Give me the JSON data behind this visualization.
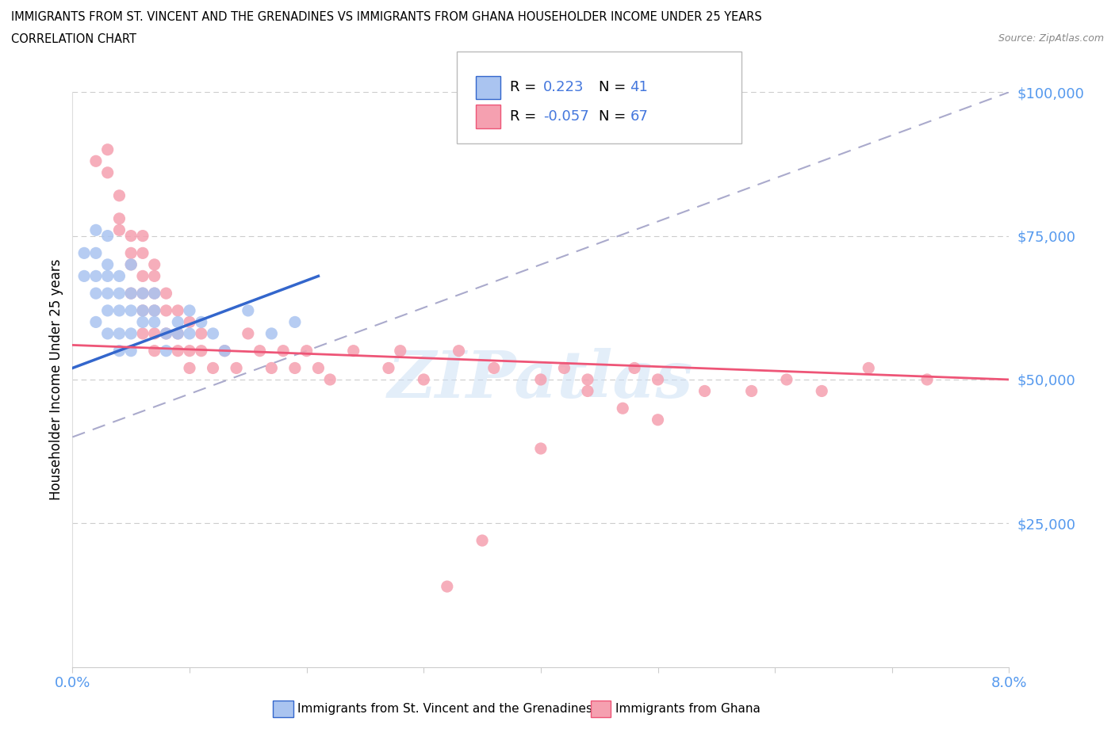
{
  "title_line1": "IMMIGRANTS FROM ST. VINCENT AND THE GRENADINES VS IMMIGRANTS FROM GHANA HOUSEHOLDER INCOME UNDER 25 YEARS",
  "title_line2": "CORRELATION CHART",
  "source_text": "Source: ZipAtlas.com",
  "ylabel": "Householder Income Under 25 years",
  "xmin": 0.0,
  "xmax": 0.08,
  "ymin": 0,
  "ymax": 100000,
  "color_blue": "#aac4f0",
  "color_pink": "#f5a0b0",
  "color_blue_line": "#3366cc",
  "color_pink_line": "#ee5577",
  "color_dashed": "#aaaacc",
  "color_blue_text": "#4477dd",
  "color_axis": "#5599ee",
  "legend_label1": "Immigrants from St. Vincent and the Grenadines",
  "legend_label2": "Immigrants from Ghana",
  "watermark": "ZIPatlas",
  "sv_x": [
    0.001,
    0.001,
    0.002,
    0.002,
    0.002,
    0.002,
    0.002,
    0.003,
    0.003,
    0.003,
    0.003,
    0.003,
    0.003,
    0.004,
    0.004,
    0.004,
    0.004,
    0.004,
    0.005,
    0.005,
    0.005,
    0.005,
    0.005,
    0.006,
    0.006,
    0.006,
    0.007,
    0.007,
    0.007,
    0.008,
    0.008,
    0.009,
    0.009,
    0.01,
    0.01,
    0.011,
    0.012,
    0.013,
    0.015,
    0.017,
    0.019
  ],
  "sv_y": [
    68000,
    72000,
    76000,
    72000,
    68000,
    65000,
    60000,
    75000,
    70000,
    68000,
    65000,
    62000,
    58000,
    68000,
    65000,
    62000,
    58000,
    55000,
    70000,
    65000,
    62000,
    58000,
    55000,
    65000,
    62000,
    60000,
    65000,
    62000,
    60000,
    58000,
    55000,
    60000,
    58000,
    62000,
    58000,
    60000,
    58000,
    55000,
    62000,
    58000,
    60000
  ],
  "gh_x": [
    0.002,
    0.003,
    0.003,
    0.004,
    0.004,
    0.004,
    0.005,
    0.005,
    0.005,
    0.005,
    0.006,
    0.006,
    0.006,
    0.006,
    0.006,
    0.006,
    0.007,
    0.007,
    0.007,
    0.007,
    0.007,
    0.007,
    0.008,
    0.008,
    0.008,
    0.009,
    0.009,
    0.009,
    0.01,
    0.01,
    0.01,
    0.011,
    0.011,
    0.012,
    0.013,
    0.014,
    0.015,
    0.016,
    0.017,
    0.018,
    0.019,
    0.02,
    0.021,
    0.022,
    0.024,
    0.027,
    0.03,
    0.033,
    0.036,
    0.04,
    0.042,
    0.044,
    0.048,
    0.05,
    0.054,
    0.058,
    0.061,
    0.064,
    0.068,
    0.073,
    0.04,
    0.05,
    0.047,
    0.035,
    0.028,
    0.032,
    0.044
  ],
  "gh_y": [
    88000,
    90000,
    86000,
    82000,
    78000,
    76000,
    75000,
    72000,
    70000,
    65000,
    72000,
    68000,
    65000,
    62000,
    58000,
    75000,
    70000,
    68000,
    65000,
    62000,
    58000,
    55000,
    65000,
    62000,
    58000,
    62000,
    58000,
    55000,
    60000,
    55000,
    52000,
    58000,
    55000,
    52000,
    55000,
    52000,
    58000,
    55000,
    52000,
    55000,
    52000,
    55000,
    52000,
    50000,
    55000,
    52000,
    50000,
    55000,
    52000,
    50000,
    52000,
    50000,
    52000,
    50000,
    48000,
    48000,
    50000,
    48000,
    52000,
    50000,
    38000,
    43000,
    45000,
    22000,
    55000,
    14000,
    48000
  ]
}
